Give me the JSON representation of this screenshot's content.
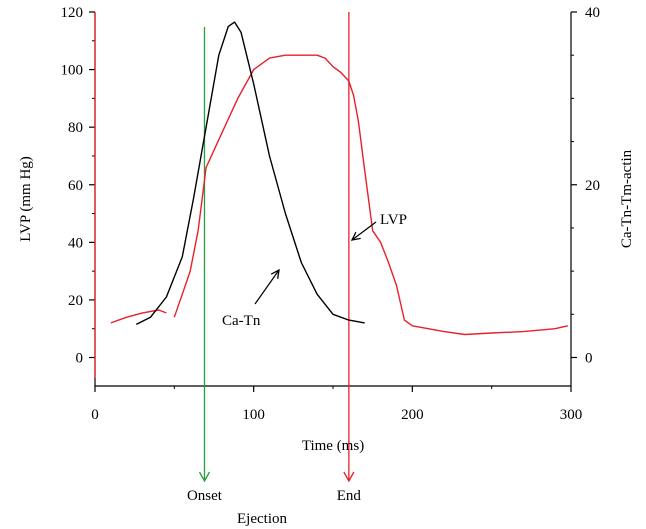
{
  "chart_data": {
    "type": "line",
    "xlabel": "Time (ms)",
    "ylabel_left": "LVP (mm Hg)",
    "ylabel_right": "Ca-Tn-Tm-actin",
    "xlim": [
      0,
      300
    ],
    "ylim_left": [
      -10,
      120
    ],
    "ylim_right": [
      0,
      40
    ],
    "x_ticks": [
      0,
      100,
      200,
      300
    ],
    "y_ticks_left": [
      0,
      20,
      40,
      60,
      80,
      100,
      120
    ],
    "y_ticks_right": [
      0,
      20,
      40
    ],
    "grid": false,
    "colors": {
      "lvp": "#e8202a",
      "catn": "#000000",
      "onset_line": "#2a9d3a",
      "end_line": "#e8202a"
    },
    "series": [
      {
        "name": "LVP",
        "axis": "left",
        "color": "#e8202a",
        "x": [
          10,
          20,
          30,
          40,
          45
        ],
        "y": [
          12,
          14,
          15.5,
          16.5,
          15.5
        ]
      },
      {
        "name": "LVP",
        "axis": "left",
        "color": "#e8202a",
        "x": [
          50,
          55,
          60,
          65,
          70,
          75,
          80,
          90,
          100,
          110,
          120,
          130,
          140,
          145,
          150,
          155,
          160,
          163,
          166,
          170,
          175,
          180,
          185,
          190,
          195,
          200,
          210,
          220,
          233,
          250,
          270,
          290,
          298
        ],
        "y": [
          14,
          22,
          30,
          44,
          66,
          72,
          78,
          90,
          100,
          104,
          105,
          105,
          105,
          104,
          101,
          99,
          96,
          91,
          82,
          65,
          44,
          40,
          33,
          25,
          13,
          11,
          10,
          9,
          8,
          8.5,
          9,
          10,
          11
        ]
      },
      {
        "name": "Ca-Tn",
        "axis": "left",
        "color": "#000000",
        "x": [
          26,
          35,
          45,
          55,
          62,
          70,
          78,
          84,
          88,
          92,
          100,
          110,
          120,
          130,
          140,
          150,
          160,
          170
        ],
        "y": [
          11.5,
          14,
          21,
          35,
          55,
          80,
          105,
          115,
          116.5,
          113,
          95,
          70,
          50,
          33,
          22,
          15,
          13,
          12
        ]
      }
    ],
    "vertical_markers": [
      {
        "x": 0,
        "color": "#e8202a",
        "label": ""
      },
      {
        "x": 69,
        "color": "#2a9d3a",
        "label": "Onset"
      },
      {
        "x": 160,
        "color": "#e8202a",
        "label": "End"
      }
    ],
    "annotations": [
      {
        "text": "LVP",
        "target_series": "LVP"
      },
      {
        "text": "Ca-Tn",
        "target_series": "Ca-Tn"
      }
    ],
    "bottom_label": "Ejection"
  }
}
